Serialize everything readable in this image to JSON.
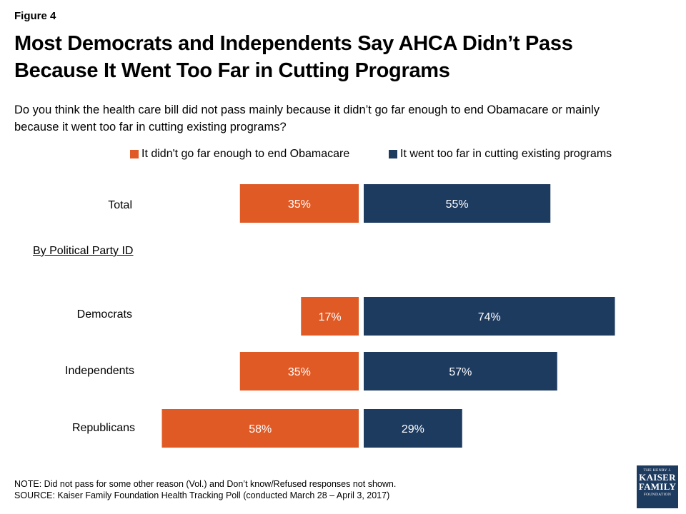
{
  "figure_label": "Figure 4",
  "title_line1": "Most Democrats and Independents Say AHCA Didn’t Pass",
  "title_line2": "Because It Went Too Far in Cutting Programs",
  "subtitle": "Do you think the health care bill did not pass mainly because it didn’t go far enough to end Obamacare or mainly because it went too far in cutting existing programs?",
  "section_label": "By Political Party ID",
  "note": "NOTE: Did not pass for some other reason (Vol.) and Don’t know/Refused responses not shown.",
  "source": "SOURCE: Kaiser Family Foundation Health Tracking Poll (conducted March 28 – April 3, 2017)",
  "logo": {
    "top": "THE HENRY J.",
    "line1": "KAISER",
    "line2": "FAMILY",
    "bottom": "FOUNDATION"
  },
  "colors": {
    "orange": "#e05a26",
    "navy": "#1d3a5f"
  },
  "chart_data": {
    "type": "bar",
    "orientation": "diverging-horizontal",
    "categories": [
      "Total",
      "Democrats",
      "Independents",
      "Republicans"
    ],
    "series": [
      {
        "name": "It didn't go far enough to end Obamacare",
        "values": [
          35,
          17,
          35,
          58
        ],
        "labels": [
          "35%",
          "17%",
          "35%",
          "58%"
        ],
        "color": "#e05a26"
      },
      {
        "name": "It went too far in cutting existing programs",
        "values": [
          55,
          74,
          57,
          29
        ],
        "labels": [
          "55%",
          "74%",
          "57%",
          "29%"
        ],
        "color": "#1d3a5f"
      }
    ],
    "legend_position": "top",
    "grid": false
  }
}
